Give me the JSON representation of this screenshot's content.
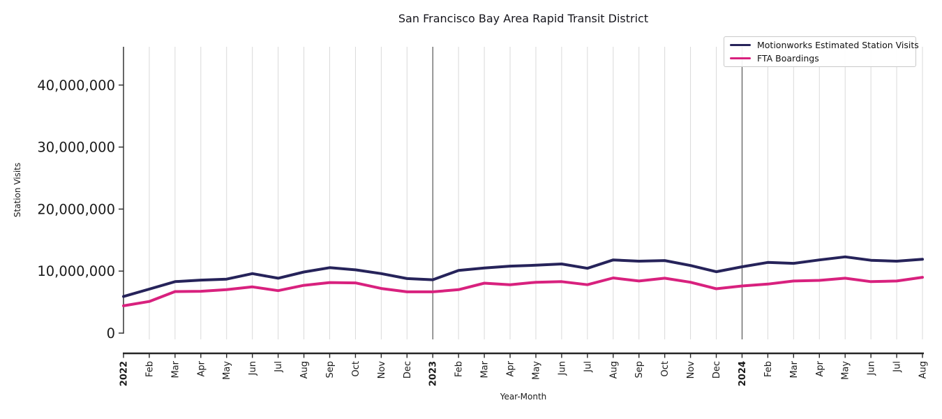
{
  "colors": {
    "background": "#ffffff",
    "grid": "#d9d9d9",
    "year_separator": "#3c3c3c",
    "axis": "#262626",
    "text": "#1a1a1a",
    "legend_border": "#c9c9c9"
  },
  "chart_data": {
    "type": "line",
    "title": "San Francisco Bay Area Rapid Transit District",
    "xlabel": "Year-Month",
    "ylabel": "Station Visits",
    "x_tick_labels": [
      "2022",
      "Feb",
      "Mar",
      "Apr",
      "May",
      "Jun",
      "Jul",
      "Aug",
      "Sep",
      "Oct",
      "Nov",
      "Dec",
      "2023",
      "Feb",
      "Mar",
      "Apr",
      "May",
      "Jun",
      "Jul",
      "Aug",
      "Sep",
      "Oct",
      "Nov",
      "Dec",
      "2024",
      "Feb",
      "Mar",
      "Apr",
      "May",
      "Jun",
      "Jul",
      "Aug"
    ],
    "bold_x_ticks": [
      "2022",
      "2023",
      "2024"
    ],
    "year_separator_indices": [
      12,
      24
    ],
    "y_ticks": [
      0,
      10000000,
      20000000,
      30000000,
      40000000
    ],
    "y_tick_labels": [
      "0",
      "10,000,000",
      "20,000,000",
      "30,000,000",
      "40,000,000"
    ],
    "ylim": [
      0,
      46200000
    ],
    "grid": "vertical line per month",
    "legend_position": "upper right",
    "series": [
      {
        "name": "Motionworks Estimated Station Visits",
        "color": "#26235a",
        "values": [
          5900000,
          7100000,
          8300000,
          8550000,
          8700000,
          9600000,
          8850000,
          9850000,
          10550000,
          10200000,
          9600000,
          8800000,
          8600000,
          10100000,
          10500000,
          10800000,
          10950000,
          11150000,
          10450000,
          11800000,
          11600000,
          11700000,
          10900000,
          9900000,
          10700000,
          11400000,
          11250000,
          11800000,
          12300000,
          11750000,
          11600000,
          11900000
        ]
      },
      {
        "name": "FTA Boardings",
        "color": "#d8217e",
        "values": [
          4400000,
          5100000,
          6700000,
          6750000,
          7000000,
          7450000,
          6850000,
          7700000,
          8150000,
          8100000,
          7200000,
          6650000,
          6650000,
          7000000,
          8050000,
          7800000,
          8200000,
          8300000,
          7800000,
          8900000,
          8400000,
          8850000,
          8200000,
          7150000,
          7600000,
          7900000,
          8400000,
          8500000,
          8850000,
          8300000,
          8400000,
          9000000
        ]
      }
    ]
  }
}
